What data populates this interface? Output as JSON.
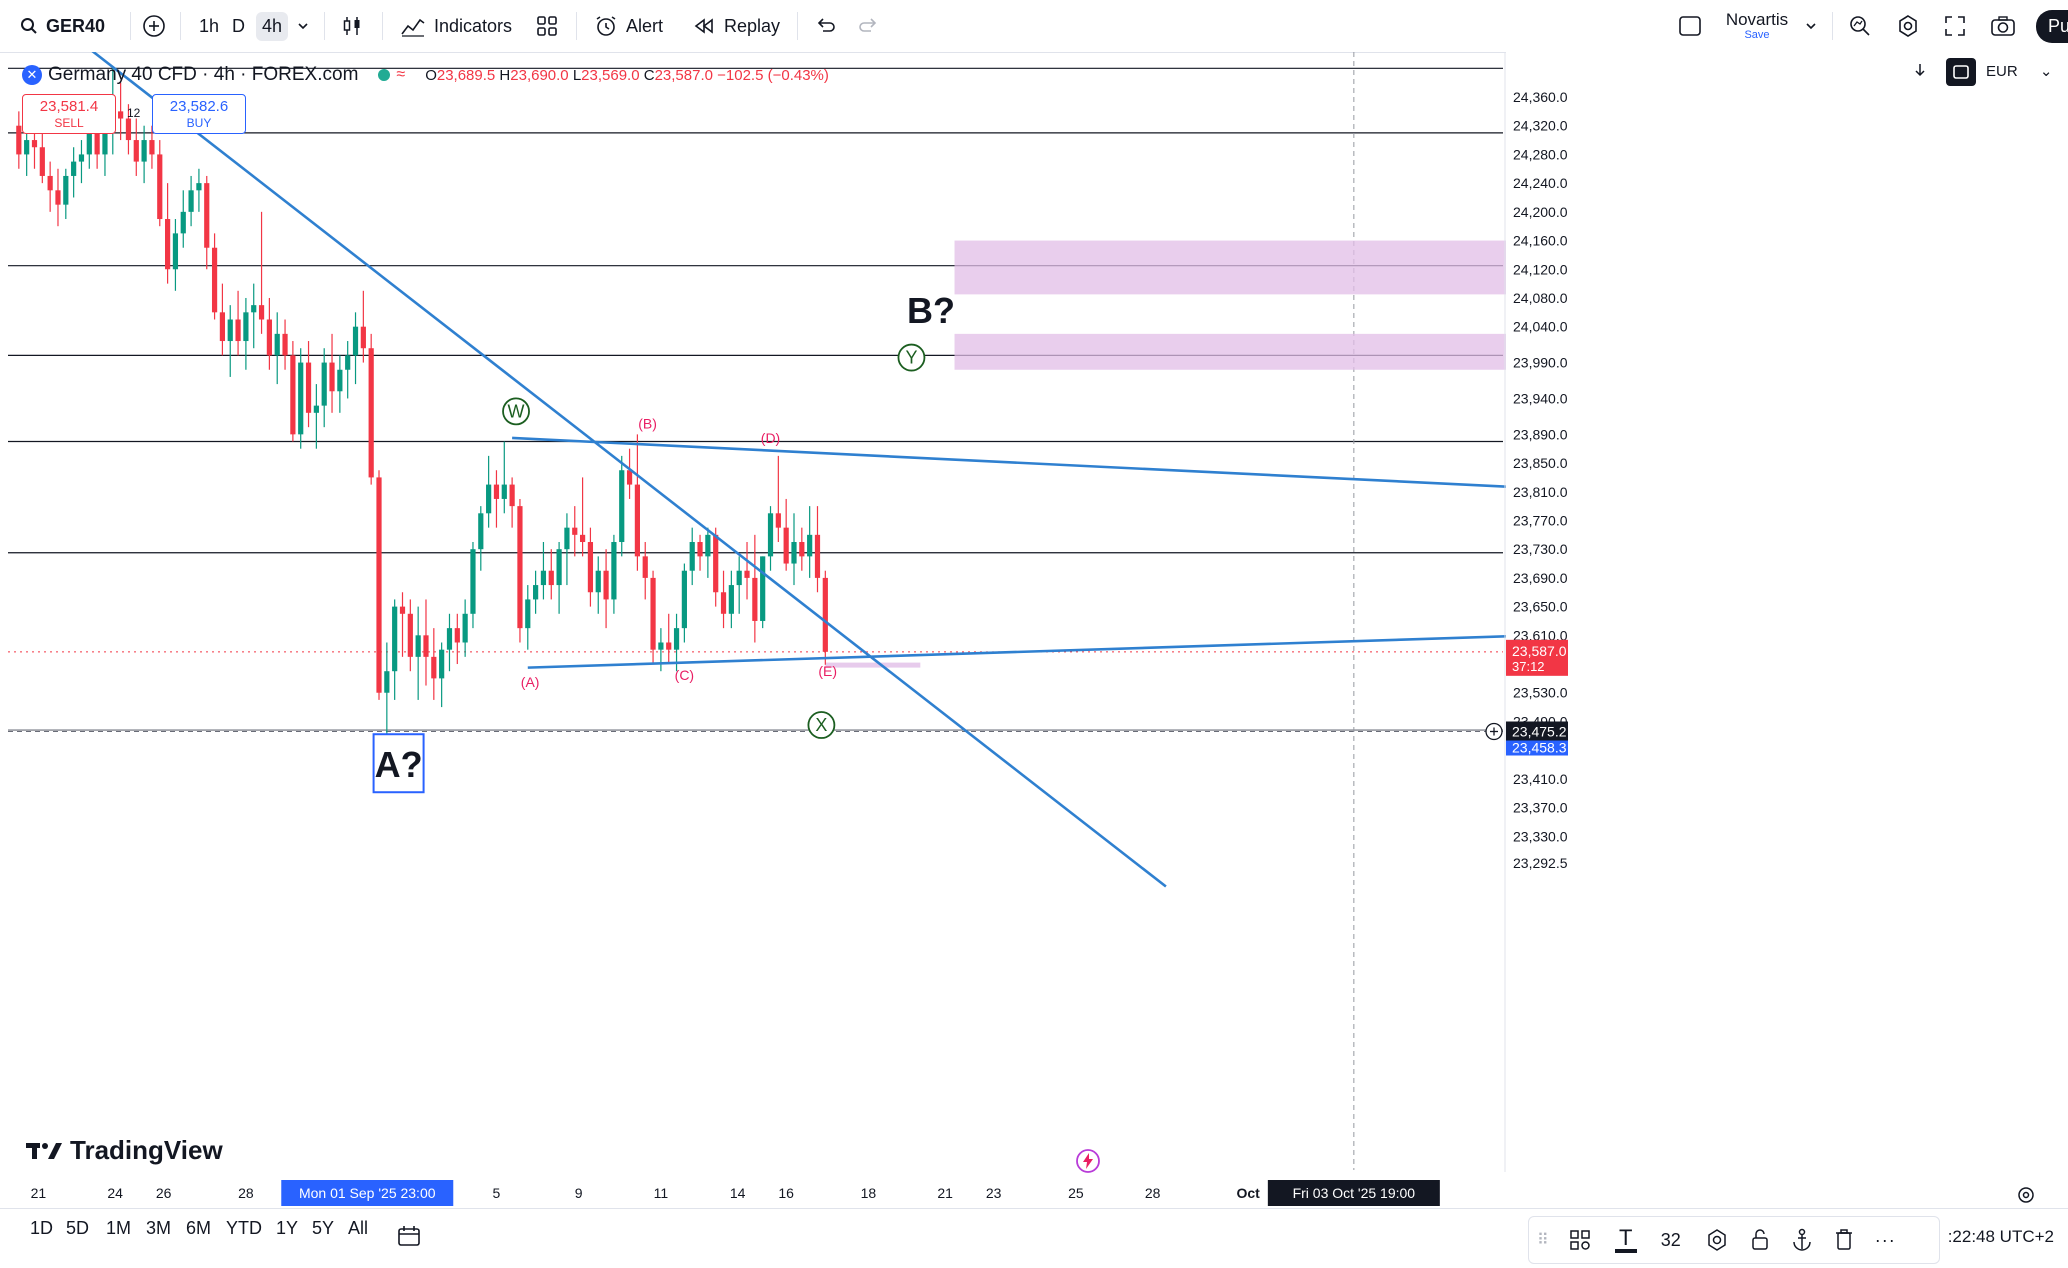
{
  "toolbar": {
    "symbol": "GER40",
    "timeframes": [
      "1h",
      "D",
      "4h"
    ],
    "active_timeframe": "4h",
    "indicators_label": "Indicators",
    "alert_label": "Alert",
    "replay_label": "Replay",
    "layout_name": "Novartis",
    "layout_save": "Save",
    "publish_label": "Pu"
  },
  "legend": {
    "title": "Germany 40 CFD · 4h · FOREX.com",
    "o_label": "O",
    "o": "23,689.5",
    "h_label": "H",
    "h": "23,690.0",
    "l_label": "L",
    "l": "23,569.0",
    "c_label": "C",
    "c": "23,587.0",
    "change": "−102.5 (−0.43%)"
  },
  "trade": {
    "sell_price": "23,581.4",
    "sell_label": "SELL",
    "buy_price": "23,582.6",
    "buy_label": "BUY",
    "spread": "12"
  },
  "currency": "EUR",
  "watermark": "TradingView",
  "bottom": {
    "ranges": [
      "1D",
      "5D",
      "1M",
      "3M",
      "6M",
      "YTD",
      "1Y",
      "5Y",
      "All"
    ],
    "clock": ":22:48 UTC+2",
    "font_size_value": "32"
  },
  "colors": {
    "up": "#089981",
    "down": "#f23645",
    "trendline": "#2f80d0",
    "zone": "#e1bee7",
    "last_price": "#f23645",
    "crosshair_price": "#2962ff"
  },
  "chart_data": {
    "type": "candlestick",
    "y_axis_ticks": [
      "24,360.0",
      "24,320.0",
      "24,280.0",
      "24,240.0",
      "24,200.0",
      "24,160.0",
      "24,120.0",
      "24,080.0",
      "24,040.0",
      "23,990.0",
      "23,940.0",
      "23,890.0",
      "23,850.0",
      "23,810.0",
      "23,770.0",
      "23,730.0",
      "23,690.0",
      "23,650.0",
      "23,610.0",
      "23,530.0",
      "23,490.0",
      "23,410.0",
      "23,370.0",
      "23,330.0",
      "23,292.5"
    ],
    "y_tick_values": [
      24360,
      24320,
      24280,
      24240,
      24200,
      24160,
      24120,
      24080,
      24040,
      23990,
      23940,
      23890,
      23850,
      23810,
      23770,
      23730,
      23690,
      23650,
      23610,
      23530,
      23490,
      23410,
      23370,
      23330,
      23292.5
    ],
    "x_axis_labels": [
      {
        "label": "21",
        "slot": 3.5
      },
      {
        "label": "24",
        "slot": 13.3
      },
      {
        "label": "26",
        "slot": 19.5
      },
      {
        "label": "28",
        "slot": 30
      },
      {
        "label": "5",
        "slot": 62
      },
      {
        "label": "9",
        "slot": 72.5
      },
      {
        "label": "11",
        "slot": 83
      },
      {
        "label": "14",
        "slot": 92.8
      },
      {
        "label": "16",
        "slot": 99
      },
      {
        "label": "18",
        "slot": 109.5
      },
      {
        "label": "21",
        "slot": 119.3
      },
      {
        "label": "23",
        "slot": 125.5
      },
      {
        "label": "25",
        "slot": 136
      },
      {
        "label": "28",
        "slot": 145.8
      },
      {
        "label": "Oct",
        "slot": 158
      }
    ],
    "crosshair_x_label": "Mon 01 Sep '25  23:00",
    "crosshair_x_slot": 45.5,
    "future_time_label": "Fri 03 Oct '25  19:00",
    "future_time_slot": 171.5,
    "last_price": "23,587.0",
    "last_countdown": "37:12",
    "crosshair_price": "23,475.2",
    "low_price_label": "23,458.3",
    "candles": [
      [
        24320,
        24340,
        24260,
        24280
      ],
      [
        24280,
        24320,
        24250,
        24300
      ],
      [
        24300,
        24340,
        24260,
        24290
      ],
      [
        24290,
        24320,
        24240,
        24250
      ],
      [
        24250,
        24270,
        24200,
        24230
      ],
      [
        24230,
        24260,
        24180,
        24210
      ],
      [
        24210,
        24260,
        24190,
        24250
      ],
      [
        24250,
        24290,
        24220,
        24270
      ],
      [
        24270,
        24300,
        24240,
        24280
      ],
      [
        24280,
        24340,
        24260,
        24320
      ],
      [
        24320,
        24360,
        24260,
        24280
      ],
      [
        24280,
        24330,
        24250,
        24310
      ],
      [
        24310,
        24400,
        24280,
        24340
      ],
      [
        24340,
        24380,
        24300,
        24330
      ],
      [
        24330,
        24350,
        24280,
        24300
      ],
      [
        24300,
        24330,
        24250,
        24270
      ],
      [
        24270,
        24320,
        24240,
        24300
      ],
      [
        24300,
        24320,
        24260,
        24280
      ],
      [
        24280,
        24300,
        24180,
        24190
      ],
      [
        24190,
        24240,
        24100,
        24120
      ],
      [
        24120,
        24190,
        24090,
        24170
      ],
      [
        24170,
        24230,
        24150,
        24200
      ],
      [
        24200,
        24250,
        24180,
        24230
      ],
      [
        24230,
        24260,
        24200,
        24240
      ],
      [
        24240,
        24250,
        24120,
        24150
      ],
      [
        24150,
        24170,
        24050,
        24060
      ],
      [
        24060,
        24100,
        24000,
        24020
      ],
      [
        24020,
        24070,
        23970,
        24050
      ],
      [
        24050,
        24090,
        24000,
        24020
      ],
      [
        24020,
        24080,
        23980,
        24060
      ],
      [
        24060,
        24100,
        24010,
        24070
      ],
      [
        24070,
        24200,
        24030,
        24050
      ],
      [
        24050,
        24080,
        23980,
        24000
      ],
      [
        24000,
        24060,
        23960,
        24030
      ],
      [
        24030,
        24050,
        23980,
        24000
      ],
      [
        24000,
        24020,
        23880,
        23890
      ],
      [
        23890,
        24010,
        23870,
        23990
      ],
      [
        23990,
        24020,
        23900,
        23920
      ],
      [
        23920,
        23960,
        23870,
        23930
      ],
      [
        23930,
        24010,
        23900,
        23990
      ],
      [
        23990,
        24030,
        23920,
        23950
      ],
      [
        23950,
        24000,
        23920,
        23980
      ],
      [
        23980,
        24020,
        23940,
        24000
      ],
      [
        24000,
        24060,
        23960,
        24040
      ],
      [
        24040,
        24090,
        23990,
        24010
      ],
      [
        24010,
        24030,
        23820,
        23830
      ],
      [
        23830,
        23840,
        23520,
        23530
      ],
      [
        23530,
        23600,
        23470,
        23560
      ],
      [
        23560,
        23660,
        23520,
        23650
      ],
      [
        23650,
        23670,
        23580,
        23640
      ],
      [
        23640,
        23660,
        23560,
        23580
      ],
      [
        23580,
        23650,
        23520,
        23610
      ],
      [
        23610,
        23660,
        23540,
        23580
      ],
      [
        23580,
        23620,
        23520,
        23550
      ],
      [
        23550,
        23600,
        23510,
        23590
      ],
      [
        23590,
        23640,
        23560,
        23620
      ],
      [
        23620,
        23640,
        23570,
        23600
      ],
      [
        23600,
        23660,
        23580,
        23640
      ],
      [
        23640,
        23740,
        23620,
        23730
      ],
      [
        23730,
        23790,
        23700,
        23780
      ],
      [
        23780,
        23860,
        23760,
        23820
      ],
      [
        23820,
        23840,
        23760,
        23800
      ],
      [
        23800,
        23880,
        23780,
        23820
      ],
      [
        23820,
        23830,
        23760,
        23790
      ],
      [
        23790,
        23800,
        23600,
        23620
      ],
      [
        23620,
        23680,
        23590,
        23660
      ],
      [
        23660,
        23700,
        23640,
        23680
      ],
      [
        23680,
        23740,
        23660,
        23700
      ],
      [
        23700,
        23730,
        23660,
        23680
      ],
      [
        23680,
        23740,
        23640,
        23730
      ],
      [
        23730,
        23780,
        23680,
        23760
      ],
      [
        23760,
        23790,
        23720,
        23750
      ],
      [
        23750,
        23830,
        23720,
        23740
      ],
      [
        23740,
        23760,
        23650,
        23670
      ],
      [
        23670,
        23720,
        23640,
        23700
      ],
      [
        23700,
        23730,
        23620,
        23660
      ],
      [
        23660,
        23750,
        23640,
        23740
      ],
      [
        23740,
        23860,
        23720,
        23840
      ],
      [
        23840,
        23870,
        23800,
        23820
      ],
      [
        23820,
        23890,
        23700,
        23720
      ],
      [
        23720,
        23740,
        23660,
        23690
      ],
      [
        23690,
        23700,
        23570,
        23590
      ],
      [
        23590,
        23620,
        23560,
        23600
      ],
      [
        23600,
        23640,
        23570,
        23590
      ],
      [
        23590,
        23640,
        23560,
        23620
      ],
      [
        23620,
        23710,
        23600,
        23700
      ],
      [
        23700,
        23760,
        23680,
        23740
      ],
      [
        23740,
        23750,
        23700,
        23720
      ],
      [
        23720,
        23760,
        23690,
        23750
      ],
      [
        23750,
        23760,
        23650,
        23670
      ],
      [
        23670,
        23700,
        23620,
        23640
      ],
      [
        23640,
        23700,
        23620,
        23680
      ],
      [
        23680,
        23720,
        23640,
        23700
      ],
      [
        23700,
        23740,
        23660,
        23690
      ],
      [
        23690,
        23750,
        23600,
        23630
      ],
      [
        23630,
        23720,
        23620,
        23720
      ],
      [
        23720,
        23790,
        23700,
        23780
      ],
      [
        23780,
        23860,
        23740,
        23760
      ],
      [
        23760,
        23800,
        23700,
        23710
      ],
      [
        23710,
        23780,
        23680,
        23740
      ],
      [
        23740,
        23760,
        23700,
        23720
      ],
      [
        23720,
        23790,
        23690,
        23750
      ],
      [
        23750,
        23790,
        23670,
        23690
      ],
      [
        23690,
        23700,
        23569,
        23587
      ]
    ],
    "horizontal_lines": [
      24400,
      24310,
      24125,
      24000,
      23880,
      23725,
      23478
    ],
    "zones": [
      {
        "from_slot": 120.5,
        "to_slot": 195,
        "top": 24160,
        "bottom": 24085
      },
      {
        "from_slot": 120.5,
        "to_slot": 195,
        "top": 24030,
        "bottom": 23980
      }
    ],
    "trendlines": [
      {
        "x1": 8.5,
        "y1": 24440,
        "x2": 147.5,
        "y2": 23260
      },
      {
        "x1": 64,
        "y1": 23885,
        "x2": 195,
        "y2": 23815
      },
      {
        "x1": 66,
        "y1": 23565,
        "x2": 195,
        "y2": 23610
      }
    ],
    "wave_labels": [
      {
        "text": "(A)",
        "slot": 66.3,
        "price": 23545,
        "style": "red"
      },
      {
        "text": "(B)",
        "slot": 81.3,
        "price": 23905,
        "style": "red"
      },
      {
        "text": "(C)",
        "slot": 86,
        "price": 23555,
        "style": "red"
      },
      {
        "text": "(D)",
        "slot": 97,
        "price": 23885,
        "style": "red"
      },
      {
        "text": "(E)",
        "slot": 104.3,
        "price": 23560,
        "style": "red"
      },
      {
        "text": "W",
        "slot": 64.5,
        "price": 23922,
        "style": "circle"
      },
      {
        "text": "X",
        "slot": 103.5,
        "price": 23485,
        "style": "circle"
      },
      {
        "text": "Y",
        "slot": 115,
        "price": 23997,
        "style": "circle"
      }
    ],
    "text_annotations": [
      {
        "text": "B?",
        "slot": 117.5,
        "price": 24062,
        "style": "plain"
      },
      {
        "text": "A?",
        "slot": 49.5,
        "price": 23429,
        "style": "boxed"
      }
    ]
  }
}
